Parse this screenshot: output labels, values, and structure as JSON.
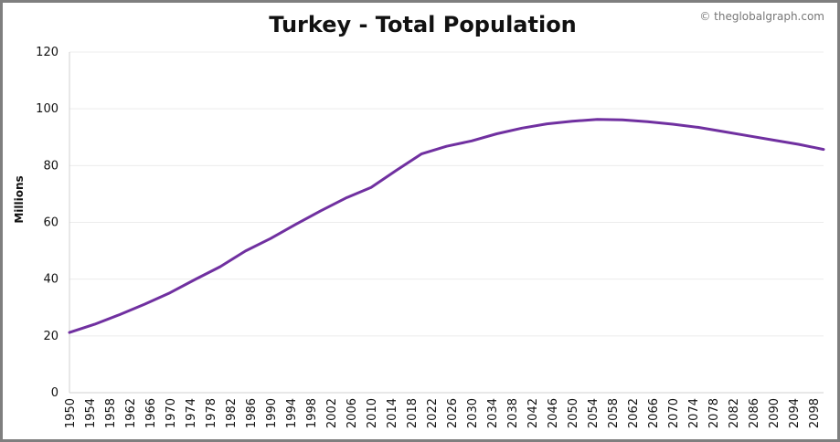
{
  "credit": "© theglobalgraph.com",
  "chart_data": {
    "type": "line",
    "title": "Turkey - Total Population",
    "xlabel": "",
    "ylabel": "Millions",
    "xlim": [
      1950,
      2100
    ],
    "ylim": [
      0,
      120
    ],
    "yticks": [
      0,
      20,
      40,
      60,
      80,
      100,
      120
    ],
    "xticks": [
      1950,
      1954,
      1958,
      1962,
      1966,
      1970,
      1974,
      1978,
      1982,
      1986,
      1990,
      1994,
      1998,
      2002,
      2006,
      2010,
      2014,
      2018,
      2022,
      2026,
      2030,
      2034,
      2038,
      2042,
      2046,
      2050,
      2054,
      2058,
      2062,
      2066,
      2070,
      2074,
      2078,
      2082,
      2086,
      2090,
      2094,
      2098
    ],
    "grid": true,
    "legend": "none",
    "line_color": "#7030a0",
    "series": [
      {
        "x": [
          1950,
          1955,
          1960,
          1965,
          1970,
          1975,
          1980,
          1985,
          1990,
          1995,
          2000,
          2005,
          2010,
          2015,
          2020,
          2025,
          2030,
          2035,
          2040,
          2045,
          2050,
          2055,
          2060,
          2065,
          2070,
          2075,
          2080,
          2085,
          2090,
          2095,
          2100
        ],
        "values": [
          21.2,
          24.1,
          27.5,
          31.2,
          35.2,
          39.9,
          44.4,
          49.9,
          54.3,
          59.3,
          64.1,
          68.6,
          72.3,
          78.3,
          84.1,
          86.8,
          88.7,
          91.2,
          93.2,
          94.7,
          95.6,
          96.3,
          96.1,
          95.5,
          94.6,
          93.5,
          92.0,
          90.5,
          89.0,
          87.5,
          85.7
        ]
      }
    ]
  }
}
